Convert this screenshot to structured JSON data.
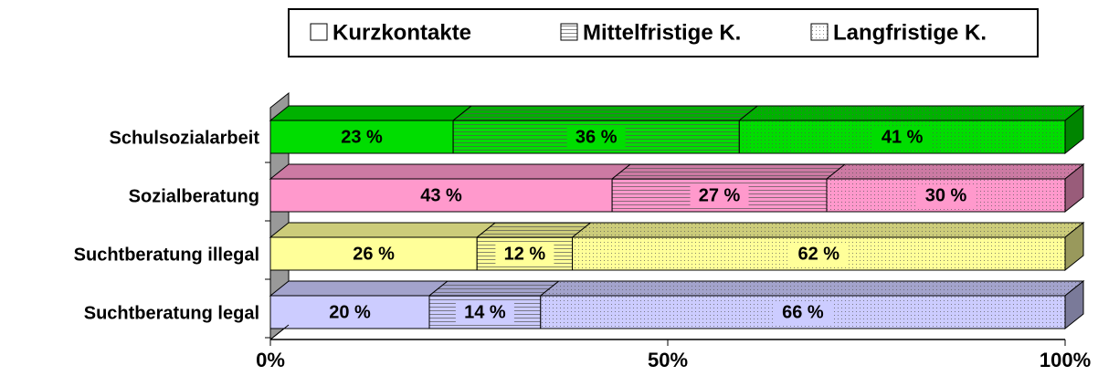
{
  "chart_data": {
    "type": "stacked_bar_horizontal",
    "categories": [
      "Schulsozialarbeit",
      "Sozialberatung",
      "Suchtberatung illegal",
      "Suchtberatung legal"
    ],
    "category_colors": [
      "#00dd00",
      "#ff99cc",
      "#ffff99",
      "#ccccff"
    ],
    "series": [
      {
        "name": "Kurzkontakte",
        "color": "#ffffff",
        "pattern": "none",
        "values": [
          23,
          43,
          26,
          20
        ],
        "value_labels": [
          "23 %",
          "43 %",
          "26 %",
          "20 %"
        ]
      },
      {
        "name": "Mittelfristige K.",
        "color": "#ffffff",
        "pattern": "hlines",
        "values": [
          36,
          27,
          12,
          14
        ],
        "value_labels": [
          "36 %",
          "27 %",
          "12 %",
          "14 %"
        ]
      },
      {
        "name": "Langfristige K.",
        "color": "#ffffff",
        "pattern": "dots",
        "values": [
          41,
          30,
          62,
          66
        ],
        "value_labels": [
          "41 %",
          "30 %",
          "62 %",
          "66 %"
        ]
      }
    ],
    "xlim": [
      0,
      100
    ],
    "xticks": [
      {
        "value": 0,
        "label": "0%"
      },
      {
        "value": 50,
        "label": "50%"
      },
      {
        "value": 100,
        "label": "100%"
      }
    ],
    "legend": "top"
  }
}
